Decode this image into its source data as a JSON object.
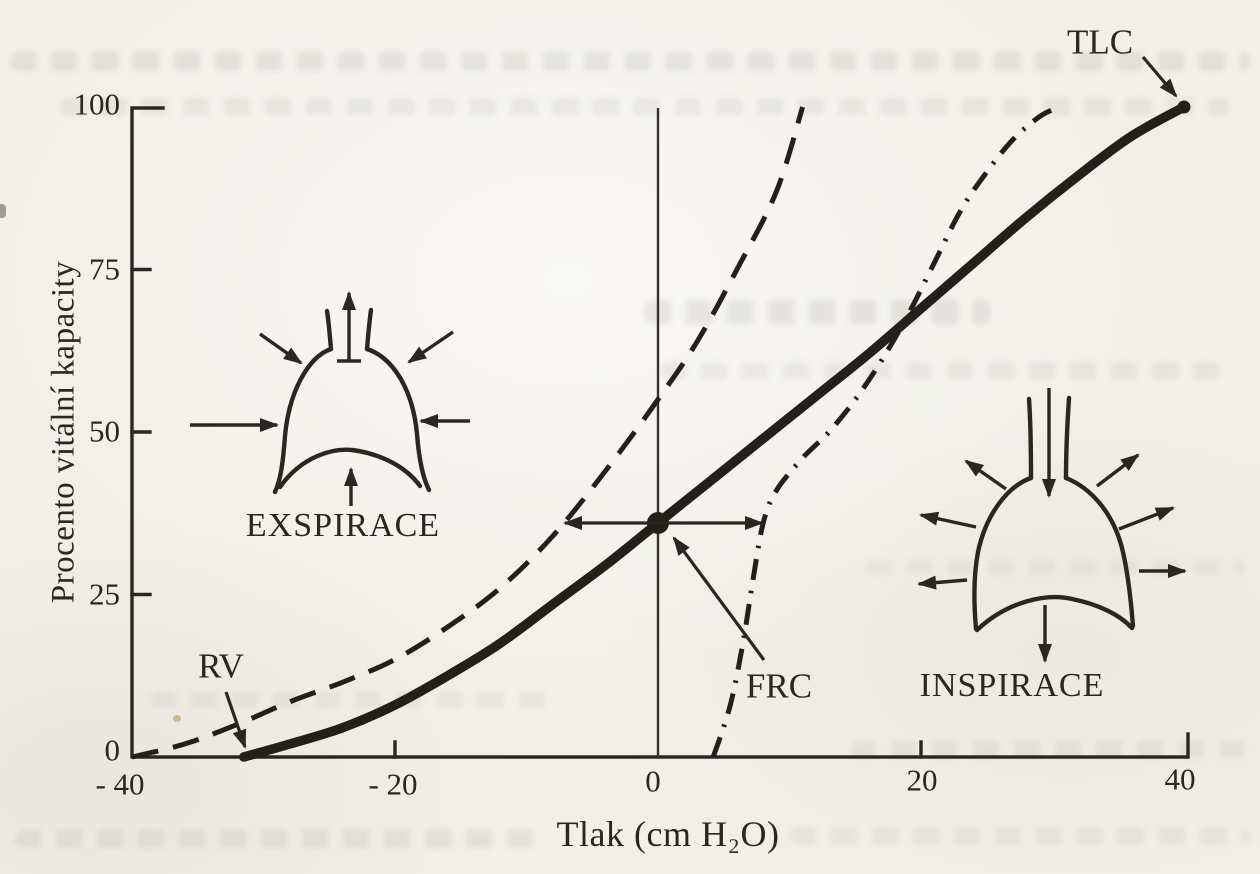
{
  "figure": {
    "y_axis": {
      "label": "Procento vitální kapacity",
      "ticks": [
        "100",
        "75",
        "50",
        "25",
        "0"
      ]
    },
    "x_axis": {
      "label": "Tlak (cm H₂O)",
      "ticks": [
        "- 40",
        "- 20",
        "0",
        "20",
        "40"
      ]
    },
    "callouts": {
      "tlc": "TLC",
      "rv": "RV",
      "frc": "FRC"
    },
    "lung_diagrams": {
      "expiration_label": "EXSPIRACE",
      "inspiration_label": "INSPIRACE"
    }
  },
  "chart_data": {
    "type": "line",
    "title": "",
    "xlabel": "Tlak (cm H₂O)",
    "ylabel": "Procento vitální kapacity",
    "xlim": [
      -40,
      40
    ],
    "ylim": [
      0,
      100
    ],
    "x_ticks": [
      -40,
      -20,
      0,
      20,
      40
    ],
    "y_ticks": [
      0,
      25,
      50,
      75,
      100
    ],
    "grid": false,
    "legend": "none",
    "series": [
      {
        "name": "solid-thick",
        "style": "solid",
        "points": [
          [
            -31.5,
            0
          ],
          [
            -28,
            2
          ],
          [
            -24,
            4.5
          ],
          [
            -20,
            8
          ],
          [
            -16,
            12.5
          ],
          [
            -12,
            17.5
          ],
          [
            -8,
            23.5
          ],
          [
            -4,
            29.5
          ],
          [
            0,
            36
          ],
          [
            4,
            42.5
          ],
          [
            8,
            49
          ],
          [
            12,
            55.5
          ],
          [
            16,
            62
          ],
          [
            20,
            69
          ],
          [
            24,
            76
          ],
          [
            28,
            83
          ],
          [
            32,
            89.5
          ],
          [
            36,
            95.5
          ],
          [
            40,
            100
          ]
        ]
      },
      {
        "name": "dashed",
        "style": "dashed",
        "points": [
          [
            -40,
            0
          ],
          [
            -36,
            2
          ],
          [
            -32,
            5
          ],
          [
            -28,
            8.5
          ],
          [
            -24,
            11.5
          ],
          [
            -20,
            15
          ],
          [
            -16,
            20
          ],
          [
            -12,
            26
          ],
          [
            -8,
            34
          ],
          [
            -4,
            44
          ],
          [
            0,
            55
          ],
          [
            3,
            64
          ],
          [
            6,
            75
          ],
          [
            9,
            87
          ],
          [
            11,
            100
          ]
        ]
      },
      {
        "name": "dash-dot",
        "style": "dashdot",
        "points": [
          [
            4.2,
            0
          ],
          [
            5.5,
            8
          ],
          [
            6.5,
            18
          ],
          [
            7.2,
            27
          ],
          [
            8,
            36
          ],
          [
            9,
            41
          ],
          [
            11,
            46
          ],
          [
            13,
            50
          ],
          [
            15,
            55
          ],
          [
            17,
            61
          ],
          [
            19,
            68
          ],
          [
            21,
            76
          ],
          [
            23,
            84
          ],
          [
            25,
            90
          ],
          [
            27,
            95
          ],
          [
            29,
            98.5
          ],
          [
            30.5,
            100
          ]
        ]
      }
    ],
    "annotations": [
      {
        "label": "TLC",
        "x": 40,
        "y": 100
      },
      {
        "label": "FRC",
        "x": 0,
        "y": 36
      },
      {
        "label": "RV",
        "x": -31.5,
        "y": 0
      }
    ]
  },
  "colors": {
    "ink": "#2a2622",
    "paper": "#f1efe9"
  }
}
